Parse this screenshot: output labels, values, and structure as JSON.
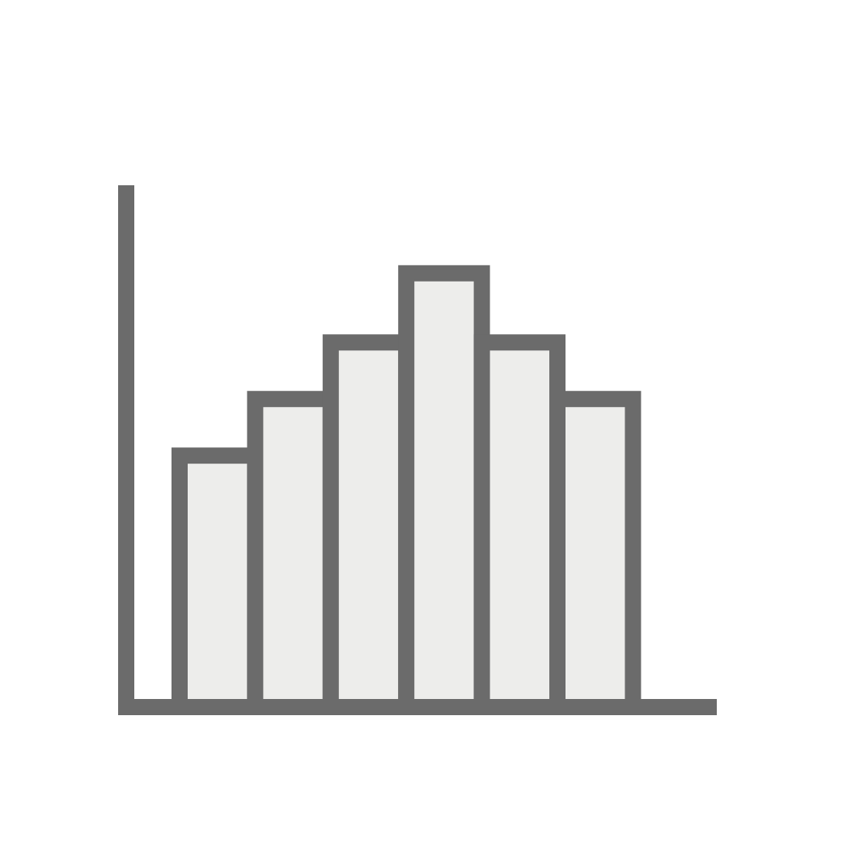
{
  "colors": {
    "stroke": "#6b6b6b",
    "bar_fill": "#ededeb",
    "background": "#ffffff"
  },
  "icon": "histogram-icon",
  "chart_data": {
    "type": "bar",
    "categories": [
      "",
      "",
      "",
      "",
      "",
      "",
      ""
    ],
    "values": [
      4.0,
      4.9,
      5.8,
      6.9,
      5.8,
      4.9,
      0
    ],
    "title": "",
    "xlabel": "",
    "ylabel": "",
    "ylim": [
      0,
      8.3
    ],
    "grid": false,
    "legend": "none"
  }
}
